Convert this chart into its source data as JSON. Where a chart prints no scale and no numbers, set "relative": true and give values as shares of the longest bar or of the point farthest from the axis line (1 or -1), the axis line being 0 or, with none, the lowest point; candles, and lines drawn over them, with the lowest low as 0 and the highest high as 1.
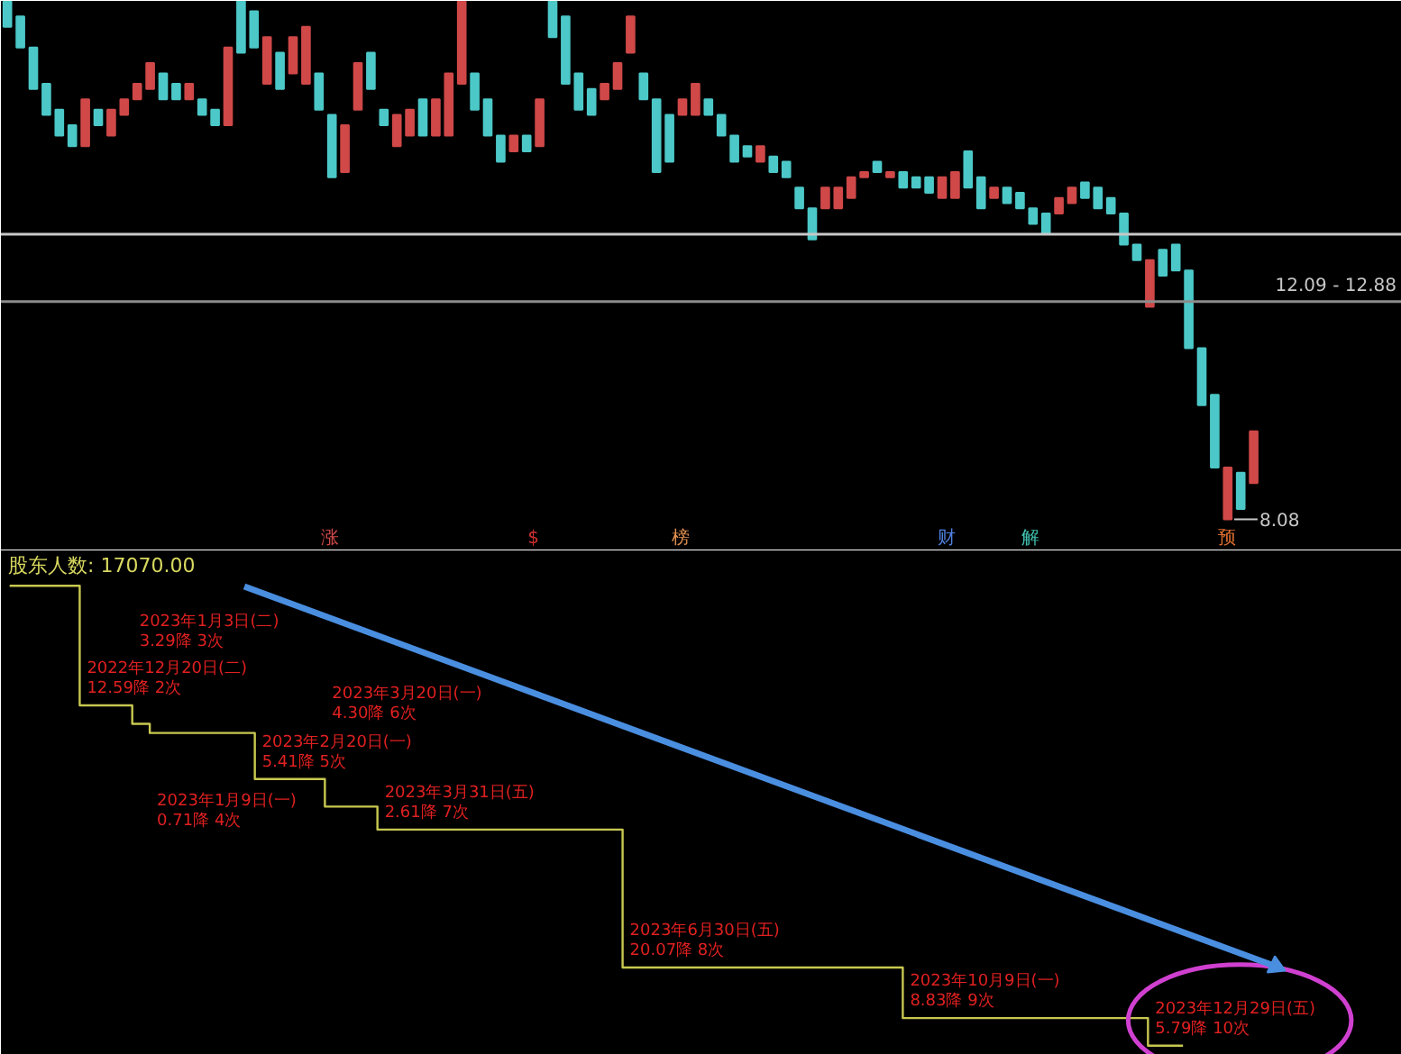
{
  "chart_data": [
    {
      "type": "candlestick",
      "relative": true,
      "categories": [
        null,
        null,
        null,
        null,
        null,
        null,
        null,
        null,
        null,
        null,
        null,
        null,
        null,
        null,
        null,
        null,
        null,
        null,
        null,
        null,
        null,
        null,
        null,
        null,
        null,
        null,
        null,
        null,
        null,
        null,
        null,
        null,
        null,
        null,
        null,
        null,
        null,
        null,
        null,
        null,
        null,
        null,
        null,
        null,
        null,
        null,
        null,
        null,
        null,
        null,
        null,
        null,
        null,
        null,
        null,
        null,
        null,
        null,
        null,
        null,
        null,
        null,
        null,
        null,
        null,
        null,
        null,
        null,
        null,
        null,
        null,
        null,
        null,
        null,
        null,
        null,
        null,
        null,
        null,
        null,
        null,
        null,
        null,
        null,
        null,
        null,
        null,
        null,
        null,
        null,
        null,
        null,
        null,
        null,
        null,
        null,
        null
      ],
      "ohlc": [
        [
          1.0,
          1.0,
          0.95,
          0.95
        ],
        [
          0.97,
          0.97,
          0.91,
          0.91
        ],
        [
          0.91,
          0.91,
          0.83,
          0.83
        ],
        [
          0.84,
          0.84,
          0.78,
          0.78
        ],
        [
          0.79,
          0.79,
          0.74,
          0.74
        ],
        [
          0.76,
          0.76,
          0.72,
          0.72
        ],
        [
          0.72,
          0.81,
          0.72,
          0.81
        ],
        [
          0.79,
          0.79,
          0.76,
          0.76
        ],
        [
          0.74,
          0.79,
          0.74,
          0.79
        ],
        [
          0.78,
          0.81,
          0.78,
          0.81
        ],
        [
          0.81,
          0.84,
          0.81,
          0.84
        ],
        [
          0.83,
          0.88,
          0.83,
          0.88
        ],
        [
          0.86,
          0.86,
          0.81,
          0.81
        ],
        [
          0.84,
          0.84,
          0.81,
          0.81
        ],
        [
          0.81,
          0.84,
          0.81,
          0.84
        ],
        [
          0.81,
          0.81,
          0.78,
          0.78
        ],
        [
          0.79,
          0.79,
          0.76,
          0.76
        ],
        [
          0.76,
          0.91,
          0.76,
          0.91
        ],
        [
          1.0,
          1.0,
          0.9,
          0.9
        ],
        [
          0.98,
          0.98,
          0.91,
          0.91
        ],
        [
          0.84,
          0.93,
          0.84,
          0.93
        ],
        [
          0.9,
          0.9,
          0.83,
          0.83
        ],
        [
          0.86,
          0.93,
          0.86,
          0.93
        ],
        [
          0.84,
          0.95,
          0.84,
          0.95
        ],
        [
          0.86,
          0.86,
          0.79,
          0.79
        ],
        [
          0.78,
          0.78,
          0.66,
          0.66
        ],
        [
          0.67,
          0.76,
          0.67,
          0.76
        ],
        [
          0.79,
          0.88,
          0.79,
          0.88
        ],
        [
          0.9,
          0.9,
          0.83,
          0.83
        ],
        [
          0.79,
          0.79,
          0.76,
          0.76
        ],
        [
          0.72,
          0.78,
          0.72,
          0.78
        ],
        [
          0.74,
          0.79,
          0.74,
          0.79
        ],
        [
          0.81,
          0.81,
          0.74,
          0.74
        ],
        [
          0.74,
          0.81,
          0.74,
          0.81
        ],
        [
          0.74,
          0.86,
          0.74,
          0.86
        ],
        [
          0.84,
          1.0,
          0.84,
          1.0
        ],
        [
          0.86,
          0.86,
          0.79,
          0.79
        ],
        [
          0.81,
          0.81,
          0.74,
          0.74
        ],
        [
          0.74,
          0.74,
          0.69,
          0.69
        ],
        [
          0.71,
          0.74,
          0.71,
          0.74
        ],
        [
          0.74,
          0.74,
          0.71,
          0.71
        ],
        [
          0.72,
          0.81,
          0.72,
          0.81
        ],
        [
          1.0,
          1.0,
          0.93,
          0.93
        ],
        [
          0.97,
          0.97,
          0.84,
          0.84
        ],
        [
          0.86,
          0.86,
          0.79,
          0.79
        ],
        [
          0.83,
          0.83,
          0.78,
          0.78
        ],
        [
          0.81,
          0.84,
          0.81,
          0.84
        ],
        [
          0.83,
          0.88,
          0.83,
          0.88
        ],
        [
          0.9,
          0.97,
          0.9,
          0.97
        ],
        [
          0.86,
          0.86,
          0.81,
          0.81
        ],
        [
          0.81,
          0.81,
          0.67,
          0.67
        ],
        [
          0.78,
          0.78,
          0.69,
          0.69
        ],
        [
          0.78,
          0.81,
          0.78,
          0.81
        ],
        [
          0.78,
          0.84,
          0.78,
          0.84
        ],
        [
          0.81,
          0.81,
          0.78,
          0.78
        ],
        [
          0.78,
          0.78,
          0.74,
          0.74
        ],
        [
          0.74,
          0.74,
          0.69,
          0.69
        ],
        [
          0.72,
          0.72,
          0.7,
          0.7
        ],
        [
          0.69,
          0.72,
          0.69,
          0.72
        ],
        [
          0.7,
          0.7,
          0.67,
          0.67
        ],
        [
          0.69,
          0.69,
          0.66,
          0.66
        ],
        [
          0.64,
          0.64,
          0.6,
          0.6
        ],
        [
          0.6,
          0.6,
          0.54,
          0.54
        ],
        [
          0.6,
          0.64,
          0.6,
          0.64
        ],
        [
          0.6,
          0.64,
          0.6,
          0.64
        ],
        [
          0.62,
          0.66,
          0.62,
          0.66
        ],
        [
          0.66,
          0.67,
          0.66,
          0.67
        ],
        [
          0.69,
          0.69,
          0.67,
          0.67
        ],
        [
          0.66,
          0.67,
          0.66,
          0.67
        ],
        [
          0.67,
          0.67,
          0.64,
          0.64
        ],
        [
          0.66,
          0.66,
          0.64,
          0.64
        ],
        [
          0.66,
          0.66,
          0.63,
          0.63
        ],
        [
          0.62,
          0.66,
          0.62,
          0.66
        ],
        [
          0.62,
          0.67,
          0.62,
          0.67
        ],
        [
          0.71,
          0.71,
          0.64,
          0.64
        ],
        [
          0.66,
          0.66,
          0.6,
          0.6
        ],
        [
          0.62,
          0.64,
          0.62,
          0.64
        ],
        [
          0.64,
          0.64,
          0.61,
          0.61
        ],
        [
          0.63,
          0.63,
          0.6,
          0.6
        ],
        [
          0.6,
          0.6,
          0.57,
          0.57
        ],
        [
          0.59,
          0.59,
          0.55,
          0.55
        ],
        [
          0.59,
          0.62,
          0.59,
          0.62
        ],
        [
          0.61,
          0.64,
          0.61,
          0.64
        ],
        [
          0.65,
          0.65,
          0.62,
          0.62
        ],
        [
          0.64,
          0.64,
          0.6,
          0.6
        ],
        [
          0.62,
          0.62,
          0.59,
          0.59
        ],
        [
          0.59,
          0.59,
          0.53,
          0.53
        ],
        [
          0.53,
          0.53,
          0.5,
          0.5
        ],
        [
          0.41,
          0.5,
          0.41,
          0.5
        ],
        [
          0.52,
          0.52,
          0.47,
          0.47
        ],
        [
          0.53,
          0.53,
          0.48,
          0.48
        ],
        [
          0.48,
          0.48,
          0.33,
          0.33
        ],
        [
          0.33,
          0.33,
          0.22,
          0.22
        ],
        [
          0.24,
          0.24,
          0.1,
          0.1
        ],
        [
          0.0,
          0.1,
          0.0,
          0.1
        ],
        [
          0.09,
          0.09,
          0.02,
          0.02
        ],
        [
          0.07,
          0.17,
          0.07,
          0.17
        ]
      ],
      "colors": [
        "#4cc8c8",
        "#4cc8c8",
        "#4cc8c8",
        "#4cc8c8",
        "#4cc8c8",
        "#4cc8c8",
        "#d04848",
        "#4cc8c8",
        "#d04848",
        "#d04848",
        "#d04848",
        "#d04848",
        "#4cc8c8",
        "#4cc8c8",
        "#d04848",
        "#4cc8c8",
        "#4cc8c8",
        "#d04848",
        "#4cc8c8",
        "#4cc8c8",
        "#d04848",
        "#4cc8c8",
        "#d04848",
        "#d04848",
        "#4cc8c8",
        "#4cc8c8",
        "#d04848",
        "#d04848",
        "#4cc8c8",
        "#4cc8c8",
        "#d04848",
        "#d04848",
        "#4cc8c8",
        "#d04848",
        "#d04848",
        "#d04848",
        "#4cc8c8",
        "#4cc8c8",
        "#4cc8c8",
        "#d04848",
        "#4cc8c8",
        "#d04848",
        "#4cc8c8",
        "#4cc8c8",
        "#4cc8c8",
        "#4cc8c8",
        "#d04848",
        "#d04848",
        "#d04848",
        "#4cc8c8",
        "#4cc8c8",
        "#4cc8c8",
        "#d04848",
        "#d04848",
        "#4cc8c8",
        "#4cc8c8",
        "#4cc8c8",
        "#4cc8c8",
        "#d04848",
        "#4cc8c8",
        "#4cc8c8",
        "#4cc8c8",
        "#4cc8c8",
        "#d04848",
        "#d04848",
        "#d04848",
        "#d04848",
        "#4cc8c8",
        "#d04848",
        "#4cc8c8",
        "#4cc8c8",
        "#4cc8c8",
        "#d04848",
        "#d04848",
        "#4cc8c8",
        "#4cc8c8",
        "#d04848",
        "#4cc8c8",
        "#4cc8c8",
        "#4cc8c8",
        "#4cc8c8",
        "#d04848",
        "#d04848",
        "#4cc8c8",
        "#4cc8c8",
        "#4cc8c8",
        "#4cc8c8",
        "#4cc8c8",
        "#d04848",
        "#4cc8c8",
        "#4cc8c8",
        "#4cc8c8",
        "#4cc8c8",
        "#4cc8c8",
        "#d04848",
        "#4cc8c8",
        "#d04848"
      ],
      "ref_lines": [
        {
          "axis": "y",
          "value": 0.55,
          "label": null,
          "color": "#c8c8c8"
        },
        {
          "axis": "y",
          "value": 0.42,
          "color": "#8c8c8c"
        }
      ],
      "annotations": [
        "12.09 - 12.88",
        "8.08",
        "涨",
        "$",
        "榜",
        "财",
        "解",
        "预"
      ]
    },
    {
      "type": "step",
      "relative": true,
      "subtitle": "股东人数: 17070.00",
      "categories": [
        null,
        null,
        null,
        null,
        null,
        null,
        null,
        null,
        null,
        null,
        null,
        null,
        null,
        null,
        null,
        null,
        null,
        null,
        null,
        null,
        null,
        null,
        null,
        null,
        null,
        null,
        null,
        null,
        null,
        null,
        null,
        null,
        null,
        null,
        null,
        null,
        null,
        null,
        null,
        null,
        null,
        null,
        null,
        null,
        null,
        null,
        null,
        null,
        null,
        null,
        null,
        null,
        null,
        null,
        null,
        null,
        null,
        null,
        null,
        null,
        null,
        null,
        null,
        null,
        null,
        null,
        null,
        null,
        null,
        null,
        null,
        null,
        null,
        null,
        null,
        null,
        null,
        null,
        null,
        null
      ],
      "series": [
        {
          "color": "#c8c850",
          "values": [
            1.0,
            1.0,
            1.0,
            1.0,
            0.74,
            0.74,
            0.74,
            0.7,
            0.68,
            0.68,
            0.68,
            0.68,
            0.68,
            0.68,
            0.58,
            0.58,
            0.58,
            0.58,
            0.52,
            0.52,
            0.52,
            0.47,
            0.47,
            0.47,
            0.47,
            0.47,
            0.47,
            0.47,
            0.47,
            0.47,
            0.47,
            0.47,
            0.47,
            0.47,
            0.47,
            0.17,
            0.17,
            0.17,
            0.17,
            0.17,
            0.17,
            0.17,
            0.17,
            0.17,
            0.17,
            0.17,
            0.17,
            0.17,
            0.17,
            0.17,
            0.17,
            0.06,
            0.06,
            0.06,
            0.06,
            0.06,
            0.06,
            0.06,
            0.06,
            0.06,
            0.06,
            0.06,
            0.06,
            0.06,
            0.06,
            0,
            0,
            0,
            null,
            null,
            null,
            null,
            null,
            null,
            null,
            null,
            null,
            null,
            null,
            null
          ]
        }
      ],
      "annotations": [
        "2022年12月20日(二)",
        "12.59降 2次",
        "2023年1月3日(二)",
        "3.29降 3次",
        "2023年1月9日(一)",
        "0.71降 4次",
        "2023年2月20日(一)",
        "5.41降 5次",
        "2023年3月20日(一)",
        "4.30降 6次",
        "2023年3月31日(五)",
        "2.61降 7次",
        "2023年6月30日(五)",
        "20.07降 8次",
        "2023年10月9日(一)",
        "8.83降 9次",
        "2023年12月29日(五)",
        "5.79降 10次"
      ]
    }
  ]
}
